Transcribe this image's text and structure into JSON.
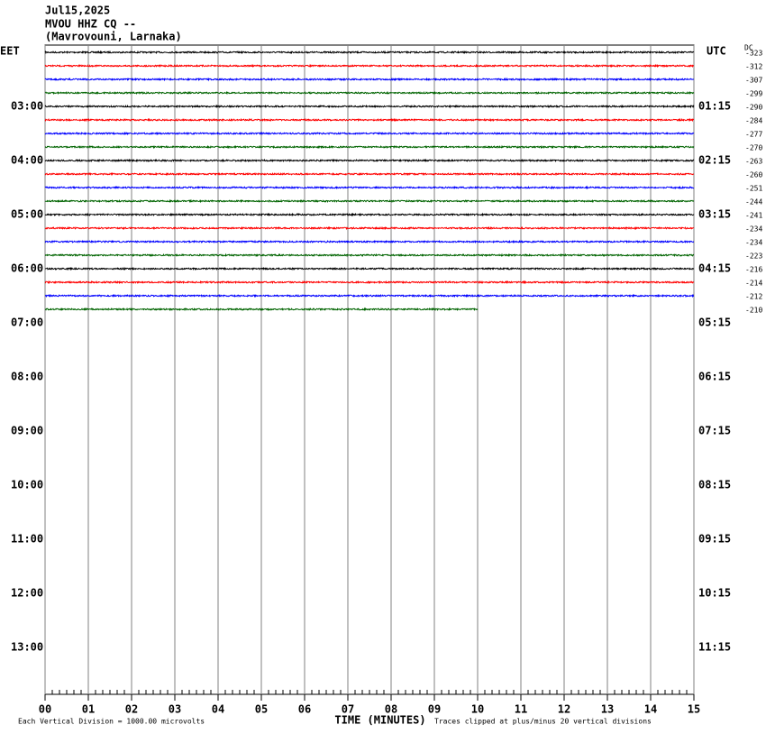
{
  "header": {
    "lines": [
      "Jul15,2025",
      "MVOU HHZ CQ --",
      "(Mavrovouni, Larnaka)"
    ]
  },
  "chart_data": {
    "type": "helicorder",
    "left_label": "EET",
    "right_label": "UTC",
    "offset_label": "DC",
    "xlabel": "TIME (MINUTES)",
    "notes": [
      "Each Vertical Division = 1000.00 microvolts",
      "Traces clipped at plus/minus 20 vertical divisions"
    ],
    "xlim": [
      0,
      15
    ],
    "xticks": [
      {
        "value": 0,
        "label": "00"
      },
      {
        "value": 1,
        "label": "01"
      },
      {
        "value": 2,
        "label": "02"
      },
      {
        "value": 3,
        "label": "03"
      },
      {
        "value": 4,
        "label": "04"
      },
      {
        "value": 5,
        "label": "05"
      },
      {
        "value": 6,
        "label": "06"
      },
      {
        "value": 7,
        "label": "07"
      },
      {
        "value": 8,
        "label": "08"
      },
      {
        "value": 9,
        "label": "09"
      },
      {
        "value": 10,
        "label": "10"
      },
      {
        "value": 11,
        "label": "11"
      },
      {
        "value": 12,
        "label": "12"
      },
      {
        "value": 13,
        "label": "13"
      },
      {
        "value": 14,
        "label": "14"
      },
      {
        "value": 15,
        "label": "15"
      }
    ],
    "local_labels": [
      null,
      null,
      null,
      null,
      "03:00",
      null,
      null,
      null,
      "04:00",
      null,
      null,
      null,
      "05:00",
      null,
      null,
      null,
      "06:00",
      null,
      null,
      null,
      "07:00",
      null,
      null,
      null,
      "08:00",
      null,
      null,
      null,
      "09:00",
      null,
      null,
      null,
      "10:00",
      null,
      null,
      null,
      "11:00",
      null,
      null,
      null,
      "12:00",
      null,
      null,
      null,
      "13:00"
    ],
    "utc_labels": [
      null,
      null,
      null,
      null,
      "01:15",
      null,
      null,
      null,
      "02:15",
      null,
      null,
      null,
      "03:15",
      null,
      null,
      null,
      "04:15",
      null,
      null,
      null,
      "05:15",
      null,
      null,
      null,
      "06:15",
      null,
      null,
      null,
      "07:15",
      null,
      null,
      null,
      "08:15",
      null,
      null,
      null,
      "09:15",
      null,
      null,
      null,
      "10:15",
      null,
      null,
      null,
      "11:15"
    ],
    "traces": [
      {
        "color": "#000000",
        "offset": -323,
        "end": 15
      },
      {
        "color": "#ff0000",
        "offset": -312,
        "end": 15
      },
      {
        "color": "#0000ff",
        "offset": -307,
        "end": 15
      },
      {
        "color": "#006400",
        "offset": -299,
        "end": 15
      },
      {
        "color": "#000000",
        "offset": -290,
        "end": 15
      },
      {
        "color": "#ff0000",
        "offset": -284,
        "end": 15
      },
      {
        "color": "#0000ff",
        "offset": -277,
        "end": 15
      },
      {
        "color": "#006400",
        "offset": -270,
        "end": 15
      },
      {
        "color": "#000000",
        "offset": -263,
        "end": 15
      },
      {
        "color": "#ff0000",
        "offset": -260,
        "end": 15
      },
      {
        "color": "#0000ff",
        "offset": -251,
        "end": 15
      },
      {
        "color": "#006400",
        "offset": -244,
        "end": 15
      },
      {
        "color": "#000000",
        "offset": -241,
        "end": 15
      },
      {
        "color": "#ff0000",
        "offset": -234,
        "end": 15
      },
      {
        "color": "#0000ff",
        "offset": -234,
        "end": 15
      },
      {
        "color": "#006400",
        "offset": -223,
        "end": 15
      },
      {
        "color": "#000000",
        "offset": -216,
        "end": 15
      },
      {
        "color": "#ff0000",
        "offset": -214,
        "end": 15
      },
      {
        "color": "#0000ff",
        "offset": -212,
        "end": 15
      },
      {
        "color": "#006400",
        "offset": -210,
        "end": 10
      }
    ]
  }
}
